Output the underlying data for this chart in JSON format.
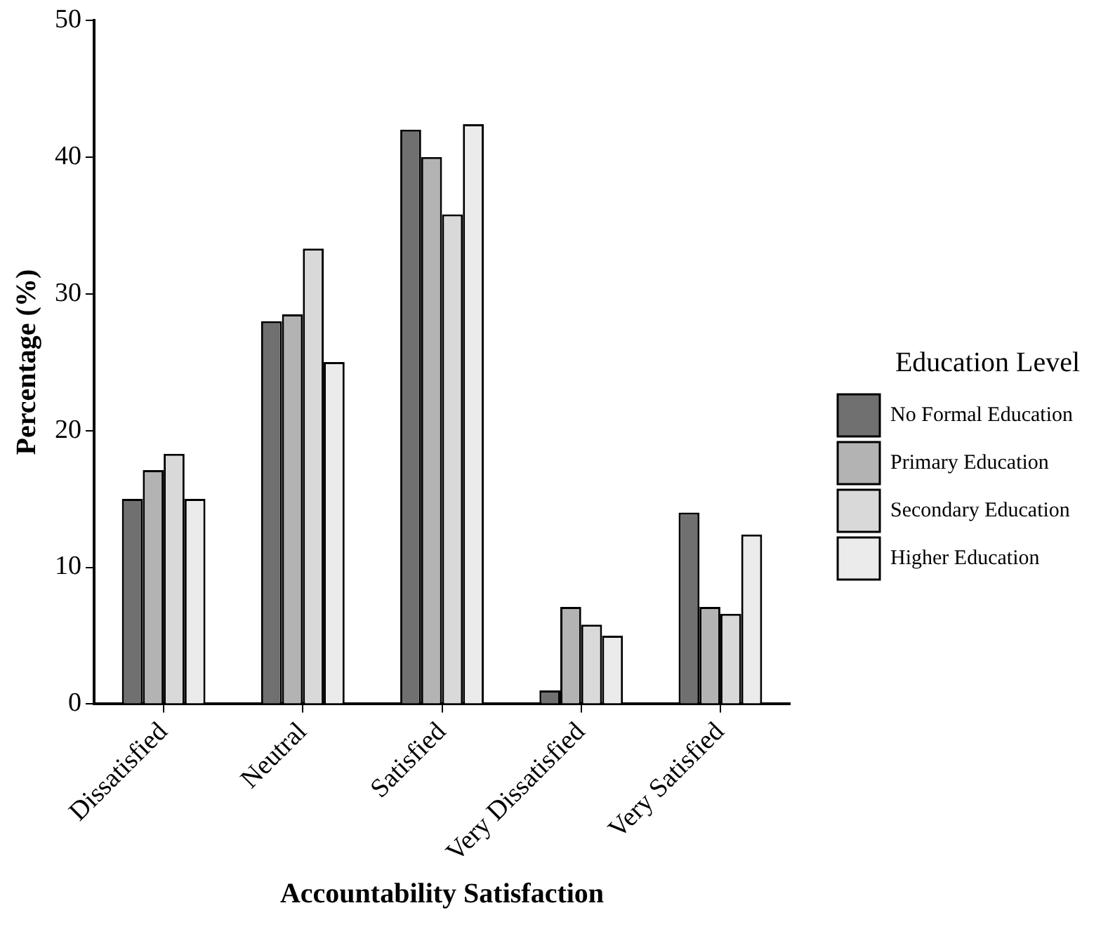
{
  "chart_data": {
    "type": "bar",
    "xlabel": "Accountability Satisfaction",
    "ylabel": "Percentage (%)",
    "legend_title": "Education Level",
    "categories": [
      "Dissatisfied",
      "Neutral",
      "Satisfied",
      "Very Dissatisfied",
      "Very Satisfied"
    ],
    "series": [
      {
        "name": "No Formal Education",
        "color": "#707070",
        "values": [
          15,
          28,
          42,
          1,
          14
        ]
      },
      {
        "name": "Primary Education",
        "color": "#b3b3b3",
        "values": [
          17.1,
          28.5,
          40,
          7.1,
          7.1
        ]
      },
      {
        "name": "Secondary Education",
        "color": "#d9d9d9",
        "values": [
          18.3,
          33.3,
          35.8,
          5.8,
          6.6
        ]
      },
      {
        "name": "Higher Education",
        "color": "#ebebeb",
        "values": [
          15,
          25,
          42.4,
          5,
          12.4
        ]
      }
    ],
    "ylim": [
      0,
      50
    ],
    "yticks": [
      0,
      10,
      20,
      30,
      40,
      50
    ],
    "grid": false,
    "legend": "right"
  }
}
